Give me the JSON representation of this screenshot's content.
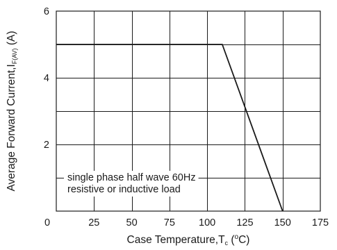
{
  "chart_data": {
    "type": "line",
    "xlabel": {
      "main": "Case Temperature,T",
      "sub": "c",
      "unit_open": " (",
      "unit_sup": "o",
      "unit_rest": "C)"
    },
    "ylabel": {
      "main": "Average Forward Current,I",
      "sub": "F(AV)",
      "unit": " (A)"
    },
    "xlim": [
      0,
      175
    ],
    "ylim": [
      0,
      6
    ],
    "x_ticks": [
      0,
      25,
      50,
      75,
      100,
      125,
      150,
      175
    ],
    "y_ticks": [
      2,
      4,
      6
    ],
    "grid": true,
    "series": [
      {
        "x": [
          0,
          110,
          150
        ],
        "y": [
          5,
          5,
          0
        ]
      }
    ],
    "annotation": {
      "lines": [
        "single phase half wave 60Hz",
        "resistive or inductive load"
      ]
    }
  }
}
